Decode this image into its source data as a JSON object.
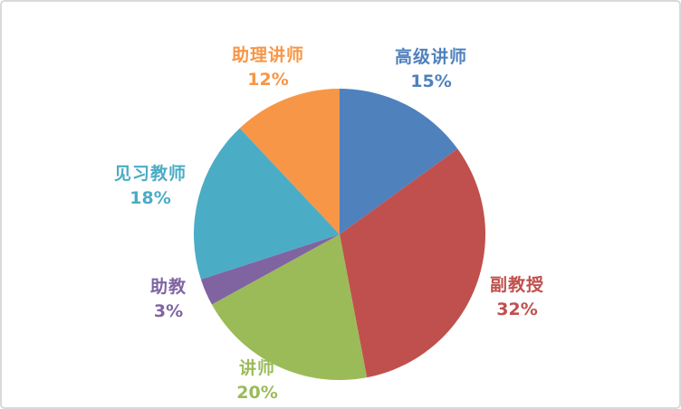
{
  "chart_data": {
    "type": "pie",
    "title": "",
    "start_angle_deg": 0,
    "direction": "clockwise",
    "legend_position": "none",
    "labels_outside": true,
    "label_format": "category name + percentage",
    "slices": [
      {
        "label": "高级讲师",
        "value": 15,
        "percent_label": "15%",
        "color": "#4F81BD"
      },
      {
        "label": "副教授",
        "value": 32,
        "percent_label": "32%",
        "color": "#C0504D"
      },
      {
        "label": "讲师",
        "value": 20,
        "percent_label": "20%",
        "color": "#9BBB59"
      },
      {
        "label": "助教",
        "value": 3,
        "percent_label": "3%",
        "color": "#8064A2"
      },
      {
        "label": "见习教师",
        "value": 18,
        "percent_label": "18%",
        "color": "#4BACC6"
      },
      {
        "label": "助理讲师",
        "value": 12,
        "percent_label": "12%",
        "color": "#F79646"
      }
    ],
    "background_color": "#ffffff",
    "border_color": "#d9d9d9"
  }
}
